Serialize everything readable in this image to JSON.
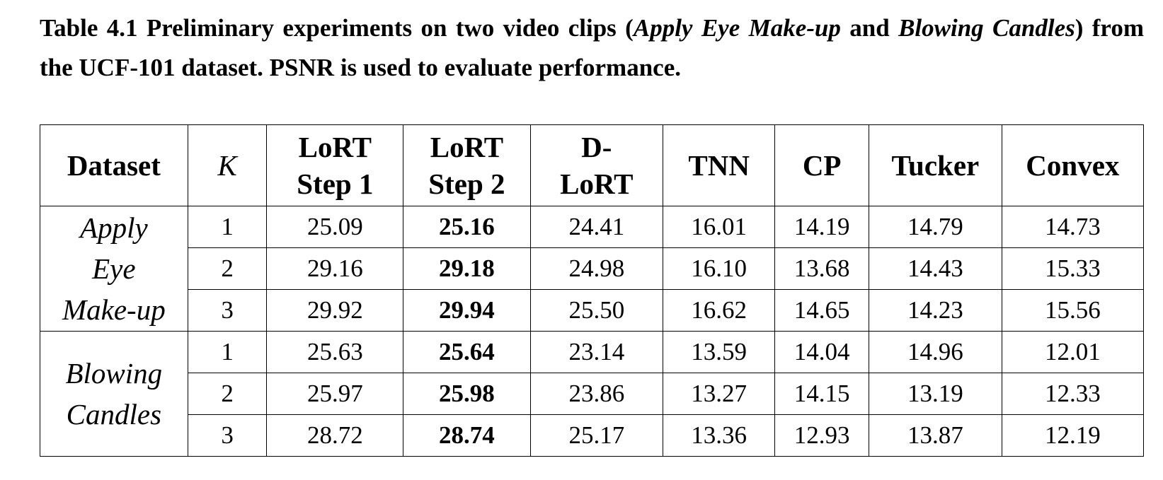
{
  "caption": {
    "part1": "Table 4.1 Preliminary experiments on two video clips (",
    "clip1": "Apply Eye Make-up",
    "and": " and ",
    "clip2": "Blowing Candles",
    "part2": ") from the UCF-101 dataset. PSNR is used to evaluate performance."
  },
  "table": {
    "headers": {
      "dataset": "Dataset",
      "k": "K",
      "lort_step1": [
        "LoRT",
        "Step 1"
      ],
      "lort_step2": [
        "LoRT",
        "Step 2"
      ],
      "d_lort": [
        "D-",
        "LoRT"
      ],
      "tnn": "TNN",
      "cp": "CP",
      "tucker": "Tucker",
      "convex": "Convex"
    },
    "groups": [
      {
        "label_lines": [
          "Apply",
          "Eye",
          "Make-up"
        ],
        "rows": [
          {
            "k": "1",
            "lort_step1": "25.09",
            "lort_step2": "25.16",
            "d_lort": "24.41",
            "tnn": "16.01",
            "cp": "14.19",
            "tucker": "14.79",
            "convex": "14.73"
          },
          {
            "k": "2",
            "lort_step1": "29.16",
            "lort_step2": "29.18",
            "d_lort": "24.98",
            "tnn": "16.10",
            "cp": "13.68",
            "tucker": "14.43",
            "convex": "15.33"
          },
          {
            "k": "3",
            "lort_step1": "29.92",
            "lort_step2": "29.94",
            "d_lort": "25.50",
            "tnn": "16.62",
            "cp": "14.65",
            "tucker": "14.23",
            "convex": "15.56"
          }
        ]
      },
      {
        "label_lines": [
          "Blowing",
          "Candles"
        ],
        "rows": [
          {
            "k": "1",
            "lort_step1": "25.63",
            "lort_step2": "25.64",
            "d_lort": "23.14",
            "tnn": "13.59",
            "cp": "14.04",
            "tucker": "14.96",
            "convex": "12.01"
          },
          {
            "k": "2",
            "lort_step1": "25.97",
            "lort_step2": "25.98",
            "d_lort": "23.86",
            "tnn": "13.27",
            "cp": "14.15",
            "tucker": "13.19",
            "convex": "12.33"
          },
          {
            "k": "3",
            "lort_step1": "28.72",
            "lort_step2": "28.74",
            "d_lort": "25.17",
            "tnn": "13.36",
            "cp": "12.93",
            "tucker": "13.87",
            "convex": "12.19"
          }
        ]
      }
    ]
  }
}
